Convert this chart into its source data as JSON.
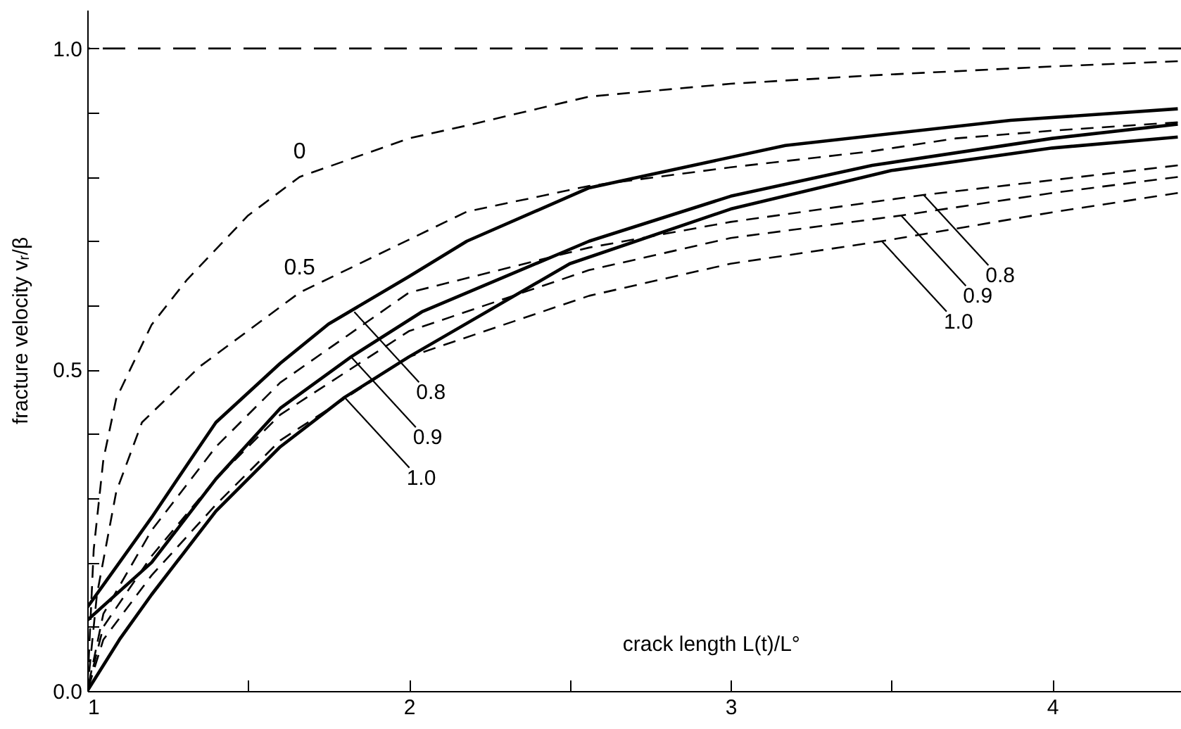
{
  "chart_data": {
    "type": "line",
    "xlabel": "crack length  L(t)/L°",
    "ylabel": "fracture velocity  vᵣ/β",
    "xlim": [
      1,
      4.4
    ],
    "ylim": [
      0,
      1.06
    ],
    "xticks": [
      1,
      {
        "value": 1.5,
        "label": null
      },
      2,
      {
        "value": 2.5,
        "label": null
      },
      3,
      {
        "value": 3.5,
        "label": null
      },
      4
    ],
    "yticks": [
      {
        "value": 0,
        "label": "0.0"
      },
      {
        "value": 0.1,
        "label": null
      },
      {
        "value": 0.2,
        "label": null
      },
      {
        "value": 0.3,
        "label": null
      },
      {
        "value": 0.4,
        "label": null
      },
      {
        "value": 0.5,
        "label": "0.5"
      },
      {
        "value": 0.6,
        "label": null
      },
      {
        "value": 0.7,
        "label": null
      },
      {
        "value": 0.8,
        "label": null
      },
      {
        "value": 0.9,
        "label": null
      },
      {
        "value": 1,
        "label": "1.0"
      }
    ],
    "series": [
      {
        "name": "0",
        "color": "#000000",
        "line_style": "dashed",
        "x": [
          1,
          1.02,
          1.05,
          1.09,
          1.2,
          1.31,
          1.5,
          1.66,
          2,
          2.18,
          2.56,
          3,
          3.44,
          4,
          4.39
        ],
        "values": [
          0,
          0.22,
          0.36,
          0.455,
          0.57,
          0.64,
          0.74,
          0.8,
          0.86,
          0.88,
          0.925,
          0.945,
          0.958,
          0.972,
          0.98
        ]
      },
      {
        "name": "0.5",
        "color": "#000000",
        "line_style": "dashed",
        "x": [
          1,
          1.03,
          1.09,
          1.17,
          1.35,
          1.66,
          2.18,
          2.56,
          3,
          3.44,
          3.7,
          4,
          4.39
        ],
        "values": [
          0,
          0.15,
          0.31,
          0.418,
          0.505,
          0.62,
          0.746,
          0.786,
          0.815,
          0.84,
          0.86,
          0.872,
          0.885
        ]
      },
      {
        "color": "#000000",
        "line_style": "dashed",
        "x": [
          1,
          1.05,
          1.2,
          1.4,
          1.6,
          2,
          2.56,
          3,
          3.6,
          4,
          4.39
        ],
        "values": [
          0,
          0.12,
          0.25,
          0.38,
          0.48,
          0.62,
          0.69,
          0.73,
          0.772,
          0.795,
          0.818
        ]
      },
      {
        "color": "#000000",
        "line_style": "dashed",
        "x": [
          1,
          1.05,
          1.2,
          1.4,
          1.6,
          2,
          2.56,
          3,
          3.53,
          4,
          4.39
        ],
        "values": [
          0,
          0.1,
          0.21,
          0.33,
          0.43,
          0.56,
          0.655,
          0.705,
          0.74,
          0.775,
          0.8
        ]
      },
      {
        "color": "#000000",
        "line_style": "dashed",
        "x": [
          1,
          1.05,
          1.2,
          1.4,
          1.6,
          2,
          2.56,
          3,
          3.47,
          4,
          4.39
        ],
        "values": [
          0,
          0.08,
          0.18,
          0.29,
          0.39,
          0.52,
          0.615,
          0.665,
          0.7,
          0.745,
          0.775
        ]
      },
      {
        "color": "#000000",
        "line_style": "solid",
        "x": [
          1,
          1.1,
          1.2,
          1.34,
          1.4,
          1.6,
          1.75,
          2,
          2.18,
          2.56,
          3.17,
          3.87,
          4.39
        ],
        "values": [
          0.13,
          0.2,
          0.27,
          0.374,
          0.418,
          0.51,
          0.571,
          0.645,
          0.7,
          0.783,
          0.849,
          0.888,
          0.906
        ]
      },
      {
        "color": "#000000",
        "line_style": "solid",
        "x": [
          1,
          1.2,
          1.4,
          1.6,
          1.82,
          2.04,
          2.56,
          3,
          3.44,
          4,
          4.39
        ],
        "values": [
          0.11,
          0.2,
          0.33,
          0.44,
          0.52,
          0.59,
          0.7,
          0.77,
          0.818,
          0.86,
          0.882
        ]
      },
      {
        "color": "#000000",
        "line_style": "solid",
        "x": [
          1,
          1.1,
          1.2,
          1.4,
          1.6,
          1.8,
          2,
          2.5,
          3,
          3.5,
          4,
          4.39
        ],
        "values": [
          0,
          0.08,
          0.15,
          0.28,
          0.38,
          0.457,
          0.52,
          0.665,
          0.75,
          0.81,
          0.845,
          0.862
        ]
      }
    ],
    "ref_lines": [
      {
        "axis": "y",
        "value": 1,
        "line_style": "dashed",
        "color": "#000000"
      }
    ],
    "annotations": [
      {
        "text": "0.8",
        "x": 1.83,
        "y": 0.59
      },
      {
        "text": "0.9",
        "x": 1.82,
        "y": 0.52
      },
      {
        "text": "1.0",
        "x": 1.8,
        "y": 0.457
      },
      {
        "text": "0.8",
        "x": 3.6,
        "y": 0.772
      },
      {
        "text": "0.9",
        "x": 3.53,
        "y": 0.74
      },
      {
        "text": "1.0",
        "x": 3.47,
        "y": 0.7
      }
    ]
  }
}
